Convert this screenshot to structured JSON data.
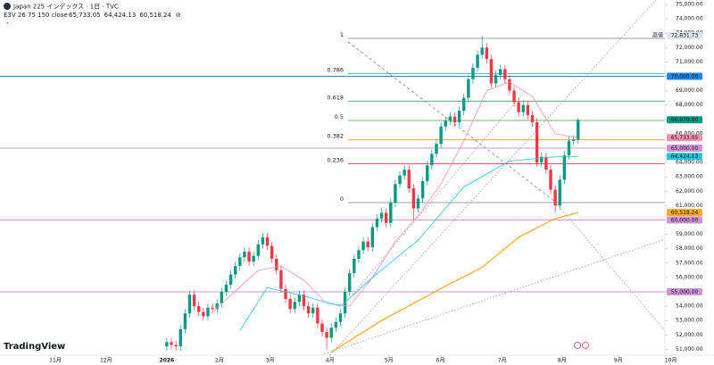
{
  "chart_data": {
    "type": "candlestick",
    "title": "Japan 225 インデックス · 1日 · TVC",
    "indicator": "E3V 26 75 150 close",
    "brand": "TradingView",
    "high_tag": "高値",
    "up_color": "#089981",
    "down_color": "#f23645",
    "xlim": [
      -36.5,
      109
    ],
    "xticks": [
      {
        "value": -24.4,
        "label": "11月"
      },
      {
        "value": -13.3,
        "label": "12月"
      },
      {
        "value": 0,
        "label": "2026"
      },
      {
        "value": 11.5,
        "label": "2月"
      },
      {
        "value": 22.6,
        "label": "3月"
      },
      {
        "value": 35.7,
        "label": "4月"
      },
      {
        "value": 48.6,
        "label": "5月"
      },
      {
        "value": 59.9,
        "label": "6月"
      },
      {
        "value": 73.4,
        "label": "7月"
      },
      {
        "value": 86.5,
        "label": "8月"
      },
      {
        "value": 98.8,
        "label": "9月"
      },
      {
        "value": 110.3,
        "label": "10月"
      }
    ],
    "ylim": [
      50000,
      75000
    ],
    "yticks": [
      {
        "value": 51000,
        "label": "51,000.00"
      },
      {
        "value": 52000,
        "label": "52,000.00"
      },
      {
        "value": 53000,
        "label": "53,000.00"
      },
      {
        "value": 54000,
        "label": "54,000.00"
      },
      {
        "value": 55000,
        "label": "55,000.00"
      },
      {
        "value": 56000,
        "label": "56,000.00"
      },
      {
        "value": 57000,
        "label": "57,000.00"
      },
      {
        "value": 58000,
        "label": "58,000.00"
      },
      {
        "value": 59000,
        "label": "59,000.00"
      },
      {
        "value": 60000,
        "label": "60,000.00"
      },
      {
        "value": 61000,
        "label": "61,000.00"
      },
      {
        "value": 62000,
        "label": "62,000.00"
      },
      {
        "value": 63000,
        "label": "63,000.00"
      },
      {
        "value": 64000,
        "label": "64,000.00"
      },
      {
        "value": 65000,
        "label": "65,000.00"
      },
      {
        "value": 66000,
        "label": "66,000.00"
      },
      {
        "value": 67000,
        "label": "67,000.00"
      },
      {
        "value": 68000,
        "label": "68,000.00"
      },
      {
        "value": 69000,
        "label": "69,000.00"
      },
      {
        "value": 70000,
        "label": "70,000.00"
      },
      {
        "value": 71000,
        "label": "71,000.00"
      },
      {
        "value": 72000,
        "label": "72,000.00"
      },
      {
        "value": 73000,
        "label": "73,000.00"
      },
      {
        "value": 74000,
        "label": "74,000.00"
      },
      {
        "value": 75000,
        "label": "75,000.00"
      }
    ],
    "open": [
      51200,
      51500,
      51300,
      51200,
      52400,
      53500,
      54800,
      54000,
      53600,
      53300,
      53900,
      53800,
      54200,
      55000,
      55500,
      56200,
      56800,
      57400,
      57800,
      57100,
      57500,
      58300,
      58800,
      58200,
      57300,
      56500,
      55200,
      54500,
      53800,
      54300,
      54800,
      54000,
      53500,
      53900,
      52800,
      52200,
      51800,
      52500,
      52900,
      53500,
      55000,
      56300,
      57300,
      57900,
      58500,
      58100,
      59500,
      60100,
      60500,
      59800,
      61200,
      62500,
      63100,
      63500,
      62200,
      60800,
      61500,
      62700,
      63800,
      64600,
      65300,
      66500,
      66900,
      67200,
      66800,
      67600,
      68500,
      69800,
      70600,
      71500,
      72000,
      71200,
      69500,
      70100,
      70500,
      69800,
      69000,
      68200,
      67500,
      68000,
      67300,
      66800,
      64000,
      64400,
      63500,
      62100,
      61000,
      62800,
      64500,
      65500,
      65600
    ],
    "high": [
      51800,
      51800,
      51600,
      52700,
      53800,
      55100,
      55100,
      54300,
      53900,
      54200,
      54200,
      54500,
      55300,
      55800,
      56500,
      57100,
      57700,
      58100,
      58100,
      57800,
      58600,
      59100,
      59100,
      58500,
      57600,
      56800,
      55500,
      54800,
      54600,
      55100,
      55100,
      54300,
      54200,
      54200,
      53100,
      52500,
      52800,
      53200,
      53800,
      55300,
      56600,
      57600,
      58200,
      58800,
      58800,
      59800,
      60400,
      60800,
      60800,
      61500,
      62800,
      63400,
      63800,
      63800,
      62500,
      61800,
      63000,
      64100,
      64900,
      65600,
      66800,
      67200,
      67500,
      67500,
      67900,
      68800,
      70100,
      70900,
      71800,
      72832,
      72300,
      71500,
      70400,
      70800,
      70800,
      70100,
      69300,
      68500,
      68300,
      68300,
      67600,
      67100,
      64700,
      64700,
      63800,
      62400,
      63100,
      64800,
      65800,
      65900,
      67100
    ],
    "low": [
      50900,
      51000,
      50900,
      50900,
      52100,
      53200,
      53700,
      53300,
      53000,
      53000,
      53500,
      53500,
      53900,
      54700,
      55200,
      55900,
      56500,
      57100,
      56800,
      56800,
      57200,
      58000,
      57900,
      57000,
      56200,
      54900,
      54200,
      53500,
      53500,
      54000,
      53700,
      53200,
      53200,
      52500,
      51900,
      51000,
      51500,
      52200,
      52600,
      53200,
      54700,
      56000,
      57000,
      57600,
      57800,
      57800,
      59200,
      59800,
      59500,
      59500,
      60900,
      62200,
      62800,
      61900,
      60000,
      60500,
      61200,
      62400,
      63500,
      64300,
      65000,
      66200,
      66600,
      66500,
      66500,
      67300,
      68200,
      69500,
      70300,
      71200,
      70900,
      69200,
      69200,
      69800,
      69500,
      68700,
      67900,
      67200,
      67200,
      67000,
      66500,
      63700,
      63700,
      63200,
      61800,
      60500,
      60700,
      62500,
      64200,
      65200,
      65300
    ],
    "close": [
      51500,
      51300,
      51200,
      52400,
      53500,
      54800,
      54000,
      53600,
      53300,
      53900,
      53800,
      54200,
      55000,
      55500,
      56200,
      56800,
      57400,
      57800,
      57100,
      57500,
      58300,
      58800,
      58200,
      57300,
      56500,
      55200,
      54500,
      53800,
      54300,
      54800,
      54000,
      53500,
      53900,
      52800,
      52200,
      51800,
      52500,
      52900,
      53500,
      55000,
      56300,
      57300,
      57900,
      58500,
      58100,
      59500,
      60100,
      60500,
      59800,
      61200,
      62500,
      63100,
      63500,
      62200,
      60800,
      61500,
      62700,
      63800,
      64600,
      65300,
      66500,
      66900,
      67200,
      66800,
      67600,
      68500,
      69800,
      70600,
      71500,
      72000,
      71200,
      69500,
      70100,
      70500,
      69800,
      69000,
      68200,
      67500,
      68000,
      67300,
      66800,
      64000,
      64400,
      63500,
      62100,
      61000,
      62800,
      64500,
      65500,
      65600,
      66970
    ],
    "series": [
      {
        "color": "#f48fb1",
        "last_label": "65,733.05",
        "x": [
          10,
          20,
          25,
          30,
          35,
          40,
          45,
          50,
          55,
          60,
          65,
          70,
          75,
          80,
          85,
          90
        ],
        "values": [
          53600,
          56500,
          56800,
          55800,
          54200,
          54000,
          56000,
          58500,
          60300,
          62500,
          65500,
          69000,
          69600,
          68600,
          66000,
          65733.05
        ]
      },
      {
        "color": "#26c6da",
        "last_label": "64,424.13",
        "x": [
          16,
          22,
          30,
          38,
          45,
          55,
          65,
          75,
          85,
          90
        ],
        "values": [
          52300,
          55300,
          54700,
          54000,
          56000,
          58600,
          62300,
          64100,
          64400,
          64424.13
        ]
      },
      {
        "color": "#f9a825",
        "last_label": "60,518.24",
        "x": [
          36,
          47,
          61,
          69,
          77,
          85,
          90
        ],
        "values": [
          50800,
          53000,
          55400,
          56700,
          58800,
          60100,
          60518.24
        ]
      }
    ],
    "hlines": [
      {
        "value": 70000,
        "label": "70,000.00",
        "color": "#1e88e5"
      },
      {
        "value": 65000,
        "label": "65,000.00",
        "color": "#ce93d8"
      },
      {
        "value": 60000,
        "label": "60,000.00",
        "color": "#ce93d8"
      },
      {
        "value": 55000,
        "label": "55,000.00",
        "color": "#ce93d8"
      }
    ],
    "fib_levels": [
      {
        "level": 1,
        "value": 72640,
        "color": "#787b86"
      },
      {
        "level": 0.786,
        "value": 70193,
        "color": "#00acc1"
      },
      {
        "level": 0.618,
        "value": 68274,
        "color": "#43a047"
      },
      {
        "level": 0.5,
        "value": 66925,
        "color": "#43a047"
      },
      {
        "level": 0.382,
        "value": 65577,
        "color": "#ff9800"
      },
      {
        "level": 0.236,
        "value": 63908,
        "color": "#f23645"
      },
      {
        "level": 0,
        "value": 61211,
        "color": "#787b86"
      }
    ],
    "high_label": {
      "value": 72831.73,
      "label": "72,831.73"
    },
    "last_label": {
      "value": 66970,
      "label": "66,970.00"
    }
  }
}
